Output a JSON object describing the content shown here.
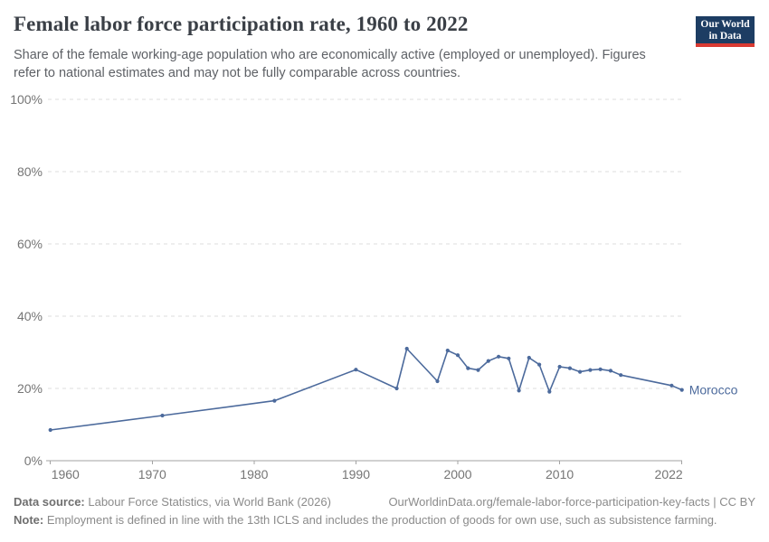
{
  "header": {
    "title": "Female labor force participation rate, 1960 to 2022",
    "subtitle": "Share of the female working-age population who are economically active (employed or unemployed). Figures refer to national estimates and may not be fully comparable across countries."
  },
  "logo": {
    "line1": "Our World",
    "line2": "in Data",
    "background_color": "#1d3d63",
    "bar_color": "#d93a32"
  },
  "chart_data": {
    "type": "line",
    "title": "Female labor force participation rate, 1960 to 2022",
    "xlabel": "",
    "ylabel": "",
    "xlim": [
      1960,
      2022
    ],
    "ylim": [
      0,
      100
    ],
    "y_ticks": [
      0,
      20,
      40,
      60,
      80,
      100
    ],
    "y_tick_suffix": "%",
    "x_ticks": [
      1960,
      1970,
      1980,
      1990,
      2000,
      2010,
      2022
    ],
    "grid": "horizontal-dashed",
    "legend_position": "end-of-line-label",
    "series": [
      {
        "name": "Morocco",
        "color": "#4C6A9C",
        "points": [
          [
            1960,
            8.5
          ],
          [
            1971,
            12.5
          ],
          [
            1982,
            16.6
          ],
          [
            1990,
            25.2
          ],
          [
            1994,
            20.0
          ],
          [
            1995,
            31.0
          ],
          [
            1998,
            22.0
          ],
          [
            1999,
            30.5
          ],
          [
            2000,
            29.2
          ],
          [
            2001,
            25.6
          ],
          [
            2002,
            25.1
          ],
          [
            2003,
            27.6
          ],
          [
            2004,
            28.8
          ],
          [
            2005,
            28.3
          ],
          [
            2006,
            19.4
          ],
          [
            2007,
            28.5
          ],
          [
            2008,
            26.6
          ],
          [
            2009,
            19.1
          ],
          [
            2010,
            26.0
          ],
          [
            2011,
            25.6
          ],
          [
            2012,
            24.6
          ],
          [
            2013,
            25.1
          ],
          [
            2014,
            25.3
          ],
          [
            2015,
            24.9
          ],
          [
            2016,
            23.7
          ],
          [
            2021,
            20.8
          ],
          [
            2022,
            19.6
          ]
        ]
      }
    ],
    "entity_label": "Morocco",
    "colors": {
      "gridline": "#dedede",
      "axis": "#a3a3a3",
      "tick_label": "#757575"
    }
  },
  "footer": {
    "data_source_label": "Data source:",
    "data_source_text": " Labour Force Statistics, via World Bank (2026)",
    "url_text": "OurWorldinData.org/female-labor-force-participation-key-facts | CC BY",
    "note_label": "Note:",
    "note_text": " Employment is defined in line with the 13th ICLS and includes the production of goods for own use, such as subsistence farming."
  }
}
